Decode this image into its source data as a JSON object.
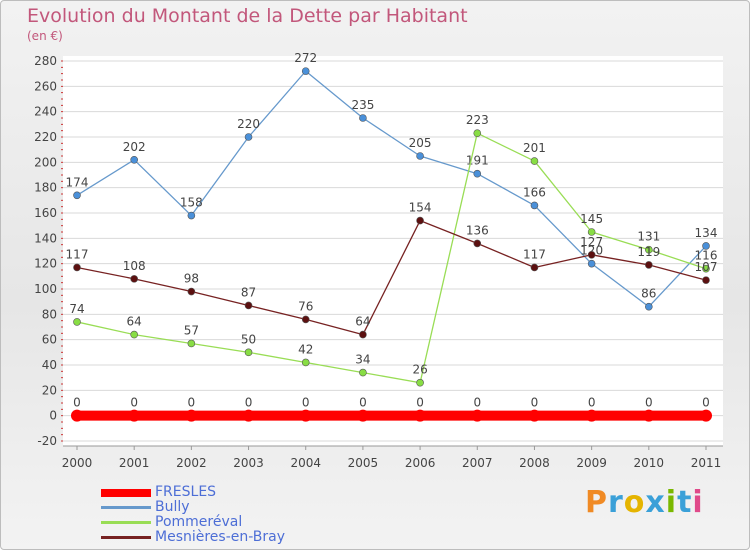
{
  "title": "Evolution du Montant de la Dette par Habitant",
  "subtitle": "(en €)",
  "logo": "Proxiti",
  "chart_data": {
    "type": "line",
    "x": [
      "2000",
      "2001",
      "2002",
      "2003",
      "2004",
      "2005",
      "2006",
      "2007",
      "2008",
      "2009",
      "2010",
      "2011"
    ],
    "ylim": [
      -20,
      280
    ],
    "yticks": [
      -20,
      0,
      20,
      40,
      60,
      80,
      100,
      120,
      140,
      160,
      180,
      200,
      220,
      240,
      260,
      280
    ],
    "grid": "horizontal",
    "legend_position": "bottom-left",
    "series": [
      {
        "name": "FRESLES",
        "color": "#ff0000",
        "values": [
          0,
          0,
          0,
          0,
          0,
          0,
          0,
          0,
          0,
          0,
          0,
          0
        ]
      },
      {
        "name": "Bully",
        "color": "#6699cc",
        "values": [
          174,
          202,
          158,
          220,
          272,
          235,
          205,
          191,
          166,
          120,
          86,
          134
        ]
      },
      {
        "name": "Pommeréval",
        "color": "#99dd55",
        "values": [
          74,
          64,
          57,
          50,
          42,
          34,
          26,
          223,
          201,
          145,
          131,
          116
        ]
      },
      {
        "name": "Mesnières-en-Bray",
        "color": "#772222",
        "values": [
          117,
          108,
          98,
          87,
          76,
          64,
          154,
          136,
          117,
          127,
          119,
          107
        ]
      }
    ]
  }
}
